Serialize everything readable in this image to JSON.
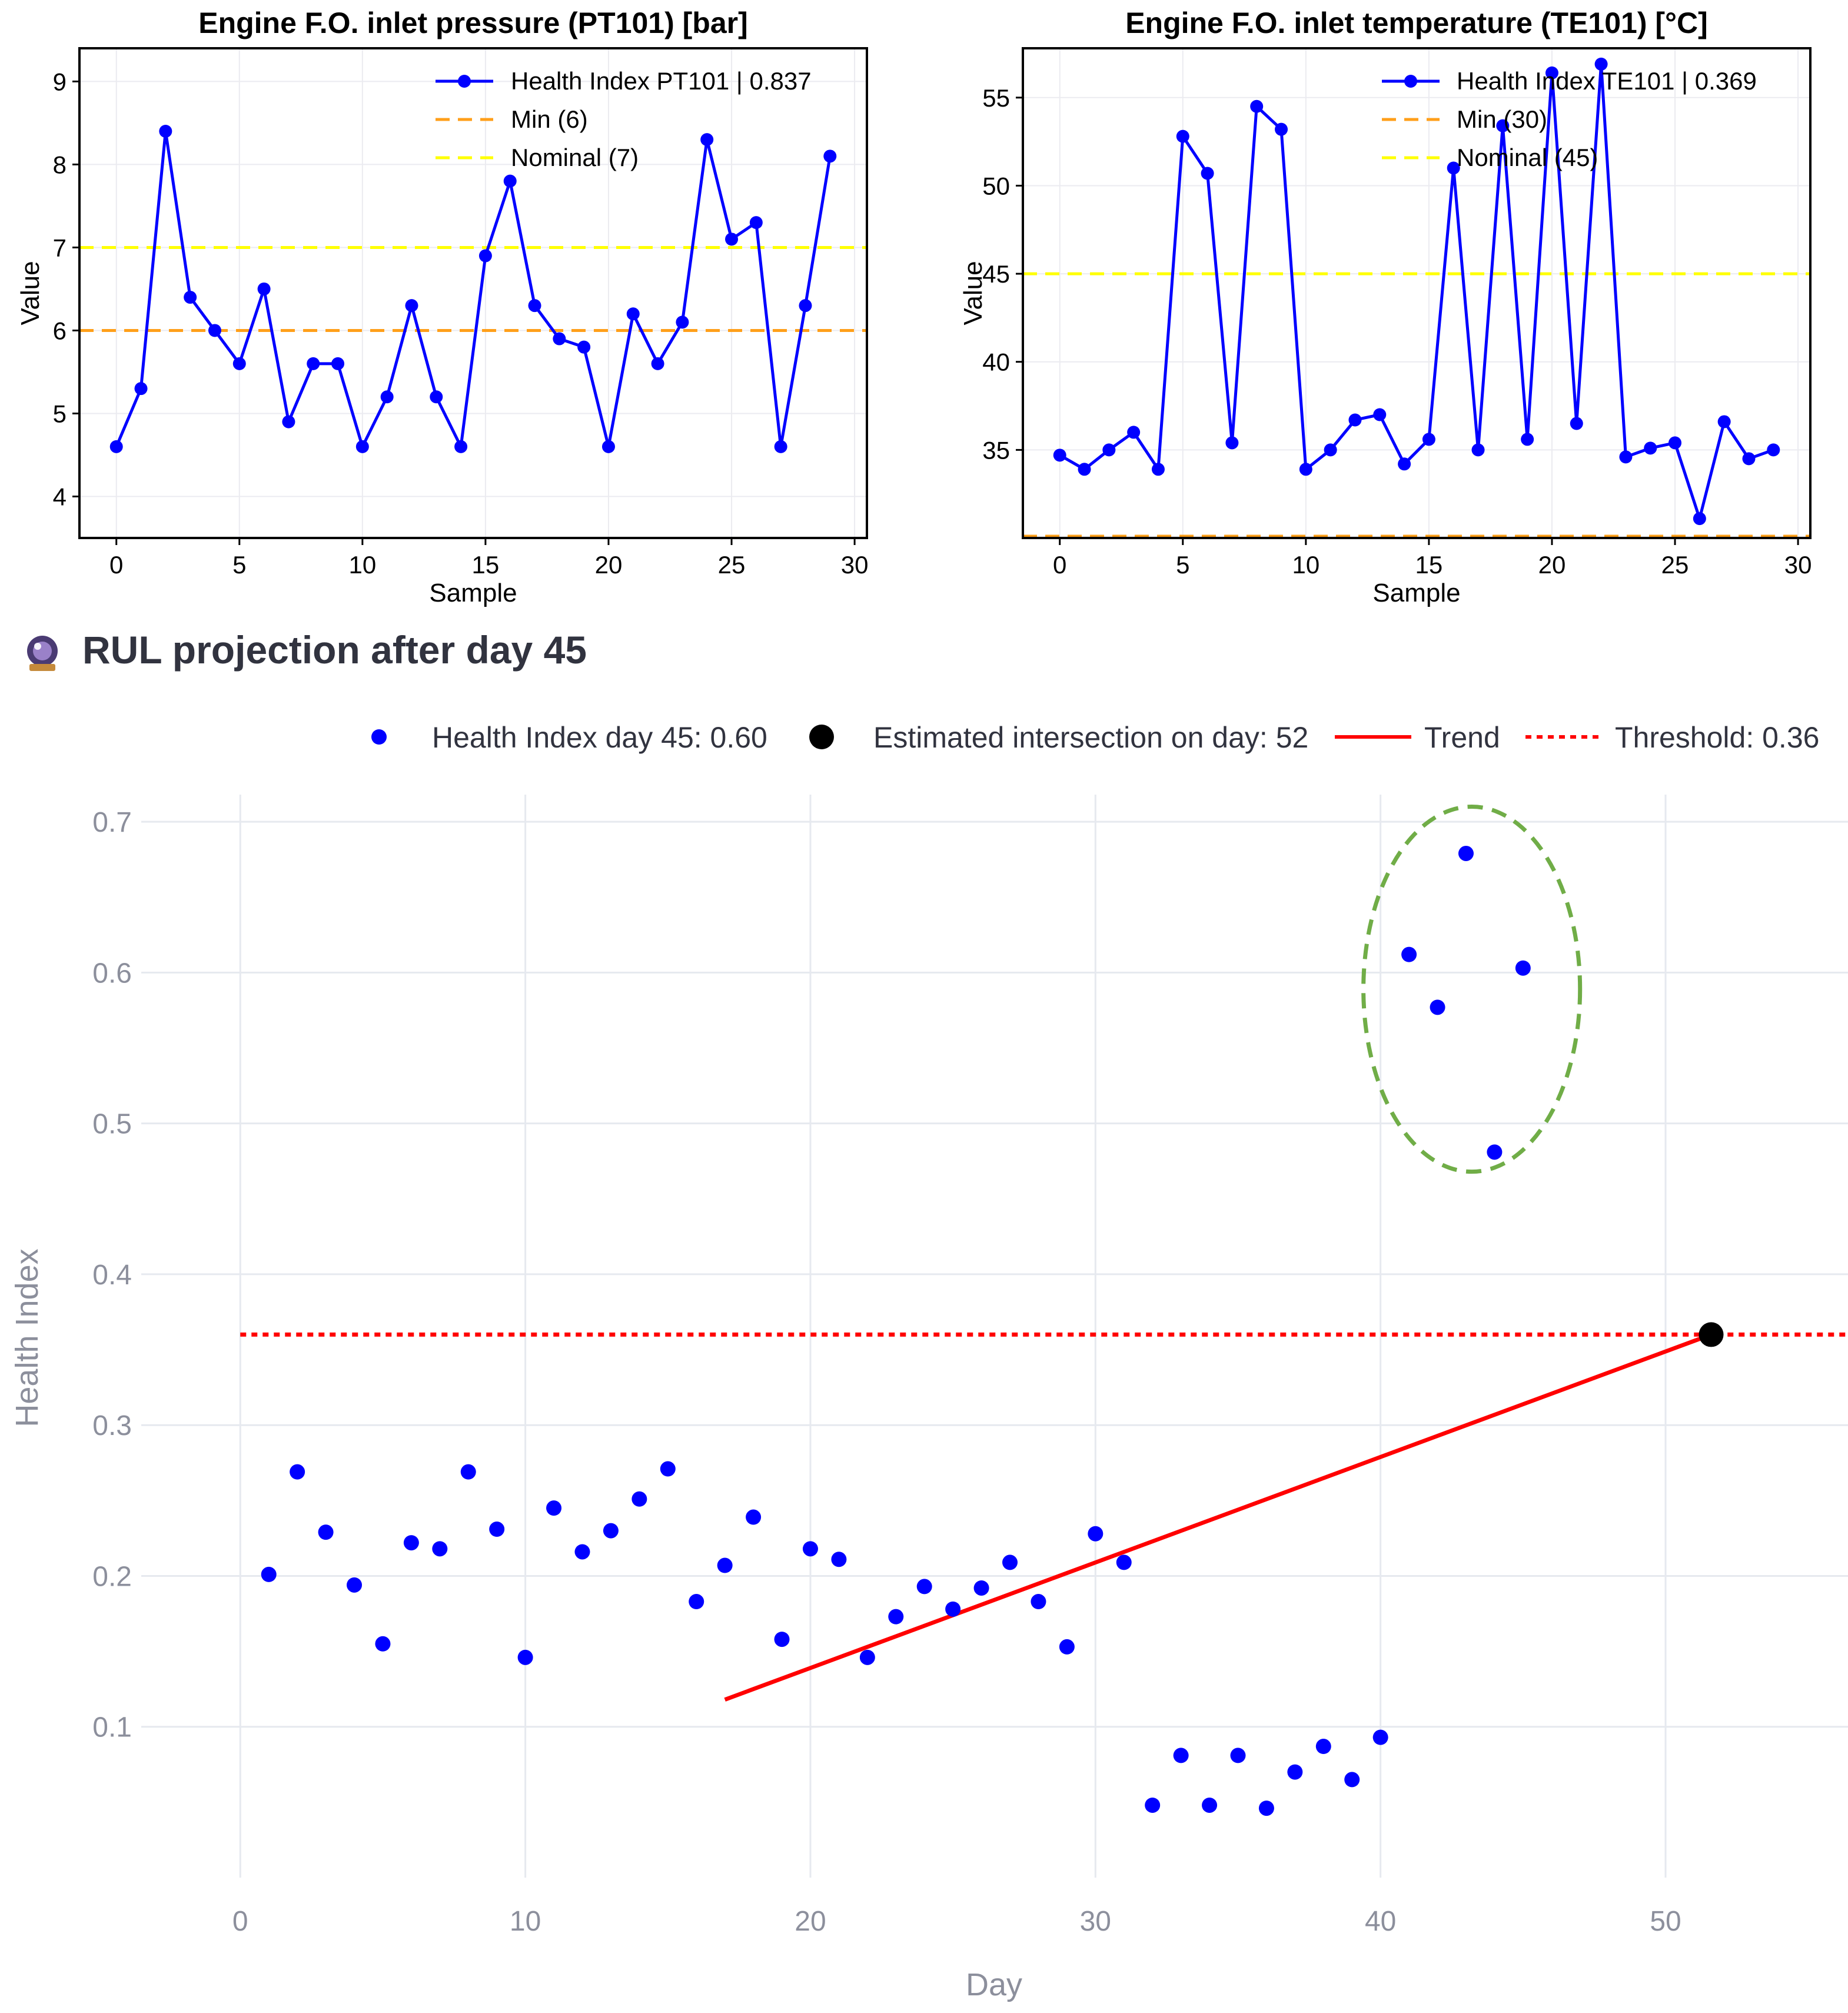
{
  "chart_data": [
    {
      "type": "line",
      "title": "Engine F.O. inlet pressure (PT101) [bar]",
      "xlabel": "Sample",
      "ylabel": "Value",
      "xlim": [
        -1.5,
        30.5
      ],
      "ylim": [
        3.5,
        9.4
      ],
      "xticks": [
        0,
        5,
        10,
        15,
        20,
        25,
        30
      ],
      "yticks": [
        4,
        5,
        6,
        7,
        8,
        9
      ],
      "grid": true,
      "legend_position": "top-right",
      "series": [
        {
          "name": "Health Index PT101 | 0.837",
          "color": "#0000ff",
          "x": [
            0,
            1,
            2,
            3,
            4,
            5,
            6,
            7,
            8,
            9,
            10,
            11,
            12,
            13,
            14,
            15,
            16,
            17,
            18,
            19,
            20,
            21,
            22,
            23,
            24,
            25,
            26,
            27,
            28,
            29
          ],
          "values": [
            4.6,
            5.3,
            8.4,
            6.4,
            6.0,
            5.6,
            6.5,
            4.9,
            5.6,
            5.6,
            4.6,
            5.2,
            6.3,
            5.2,
            4.6,
            6.9,
            7.8,
            6.3,
            5.9,
            5.8,
            4.6,
            6.2,
            5.6,
            6.1,
            8.3,
            7.1,
            7.3,
            4.6,
            6.3,
            8.1
          ]
        }
      ],
      "reference_lines": [
        {
          "name": "Min (6)",
          "value": 6,
          "color": "#ff9f1a"
        },
        {
          "name": "Nominal (7)",
          "value": 7,
          "color": "#ffff00"
        }
      ]
    },
    {
      "type": "line",
      "title": "Engine F.O. inlet temperature (TE101) [°C]",
      "xlabel": "Sample",
      "ylabel": "Value",
      "xlim": [
        -1.5,
        30.5
      ],
      "ylim": [
        30,
        57.8
      ],
      "xticks": [
        0,
        5,
        10,
        15,
        20,
        25,
        30
      ],
      "yticks": [
        35,
        40,
        45,
        50,
        55
      ],
      "grid": true,
      "legend_position": "top-right",
      "series": [
        {
          "name": "Health Index TE101 | 0.369",
          "color": "#0000ff",
          "x": [
            0,
            1,
            2,
            3,
            4,
            5,
            6,
            7,
            8,
            9,
            10,
            11,
            12,
            13,
            14,
            15,
            16,
            17,
            18,
            19,
            20,
            21,
            22,
            23,
            24,
            25,
            26,
            27,
            28,
            29
          ],
          "values": [
            34.7,
            33.9,
            35.0,
            36.0,
            33.9,
            52.8,
            50.7,
            35.4,
            54.5,
            53.2,
            33.9,
            35.0,
            36.7,
            37.0,
            34.2,
            35.6,
            51.0,
            35.0,
            53.4,
            35.6,
            56.4,
            36.5,
            56.9,
            34.6,
            35.1,
            35.4,
            31.1,
            36.6,
            34.5,
            35.0
          ]
        }
      ],
      "reference_lines": [
        {
          "name": "Min (30)",
          "value": 30,
          "color": "#ff9f1a"
        },
        {
          "name": "Nominal (45)",
          "value": 45,
          "color": "#ffff00"
        }
      ]
    },
    {
      "type": "scatter",
      "title": "RUL projection after day 45",
      "xlabel": "Day",
      "ylabel": "Health Index",
      "xlim": [
        -4.3,
        56.4
      ],
      "ylim": [
        0,
        0.718
      ],
      "xticks": [
        0,
        10,
        20,
        30,
        40,
        50
      ],
      "yticks": [
        0.1,
        0.2,
        0.3,
        0.4,
        0.5,
        0.6,
        0.7
      ],
      "grid": true,
      "legend_position": "top",
      "series": [
        {
          "name": "Health Index day 45: 0.60",
          "color": "#0000ff",
          "x": [
            1,
            2,
            3,
            4,
            5,
            6,
            7,
            8,
            9,
            10,
            11,
            12,
            13,
            14,
            15,
            16,
            17,
            18,
            19,
            20,
            21,
            22,
            23,
            24,
            25,
            26,
            27,
            28,
            29,
            30,
            31,
            32,
            33,
            34,
            35,
            36,
            37,
            38,
            39,
            40,
            41,
            42,
            43,
            44,
            45
          ],
          "values": [
            0.201,
            0.269,
            0.229,
            0.194,
            0.155,
            0.222,
            0.218,
            0.269,
            0.231,
            0.146,
            0.245,
            0.216,
            0.23,
            0.251,
            0.271,
            0.183,
            0.207,
            0.239,
            0.158,
            0.218,
            0.211,
            0.146,
            0.173,
            0.193,
            0.178,
            0.192,
            0.209,
            0.183,
            0.153,
            0.228,
            0.209,
            0.048,
            0.081,
            0.048,
            0.081,
            0.046,
            0.07,
            0.087,
            0.065,
            0.093,
            0.612,
            0.577,
            0.679,
            0.481,
            0.603
          ]
        },
        {
          "name": "Estimated intersection on day: 52",
          "color": "#000000",
          "x": [
            51.6
          ],
          "values": [
            0.36
          ]
        },
        {
          "name": "Trend",
          "color": "#ff0000",
          "x": [
            17,
            51.6
          ],
          "values": [
            0.118,
            0.36
          ]
        },
        {
          "name": "Threshold: 0.36",
          "color": "#ff0000",
          "value": 0.36
        }
      ],
      "annotation": {
        "type": "dashed-ellipse",
        "color": "#70ad47",
        "center_day": 43.2,
        "center_value": 0.589,
        "radius_days": 3.8,
        "radius_value": 0.121
      }
    }
  ]
}
